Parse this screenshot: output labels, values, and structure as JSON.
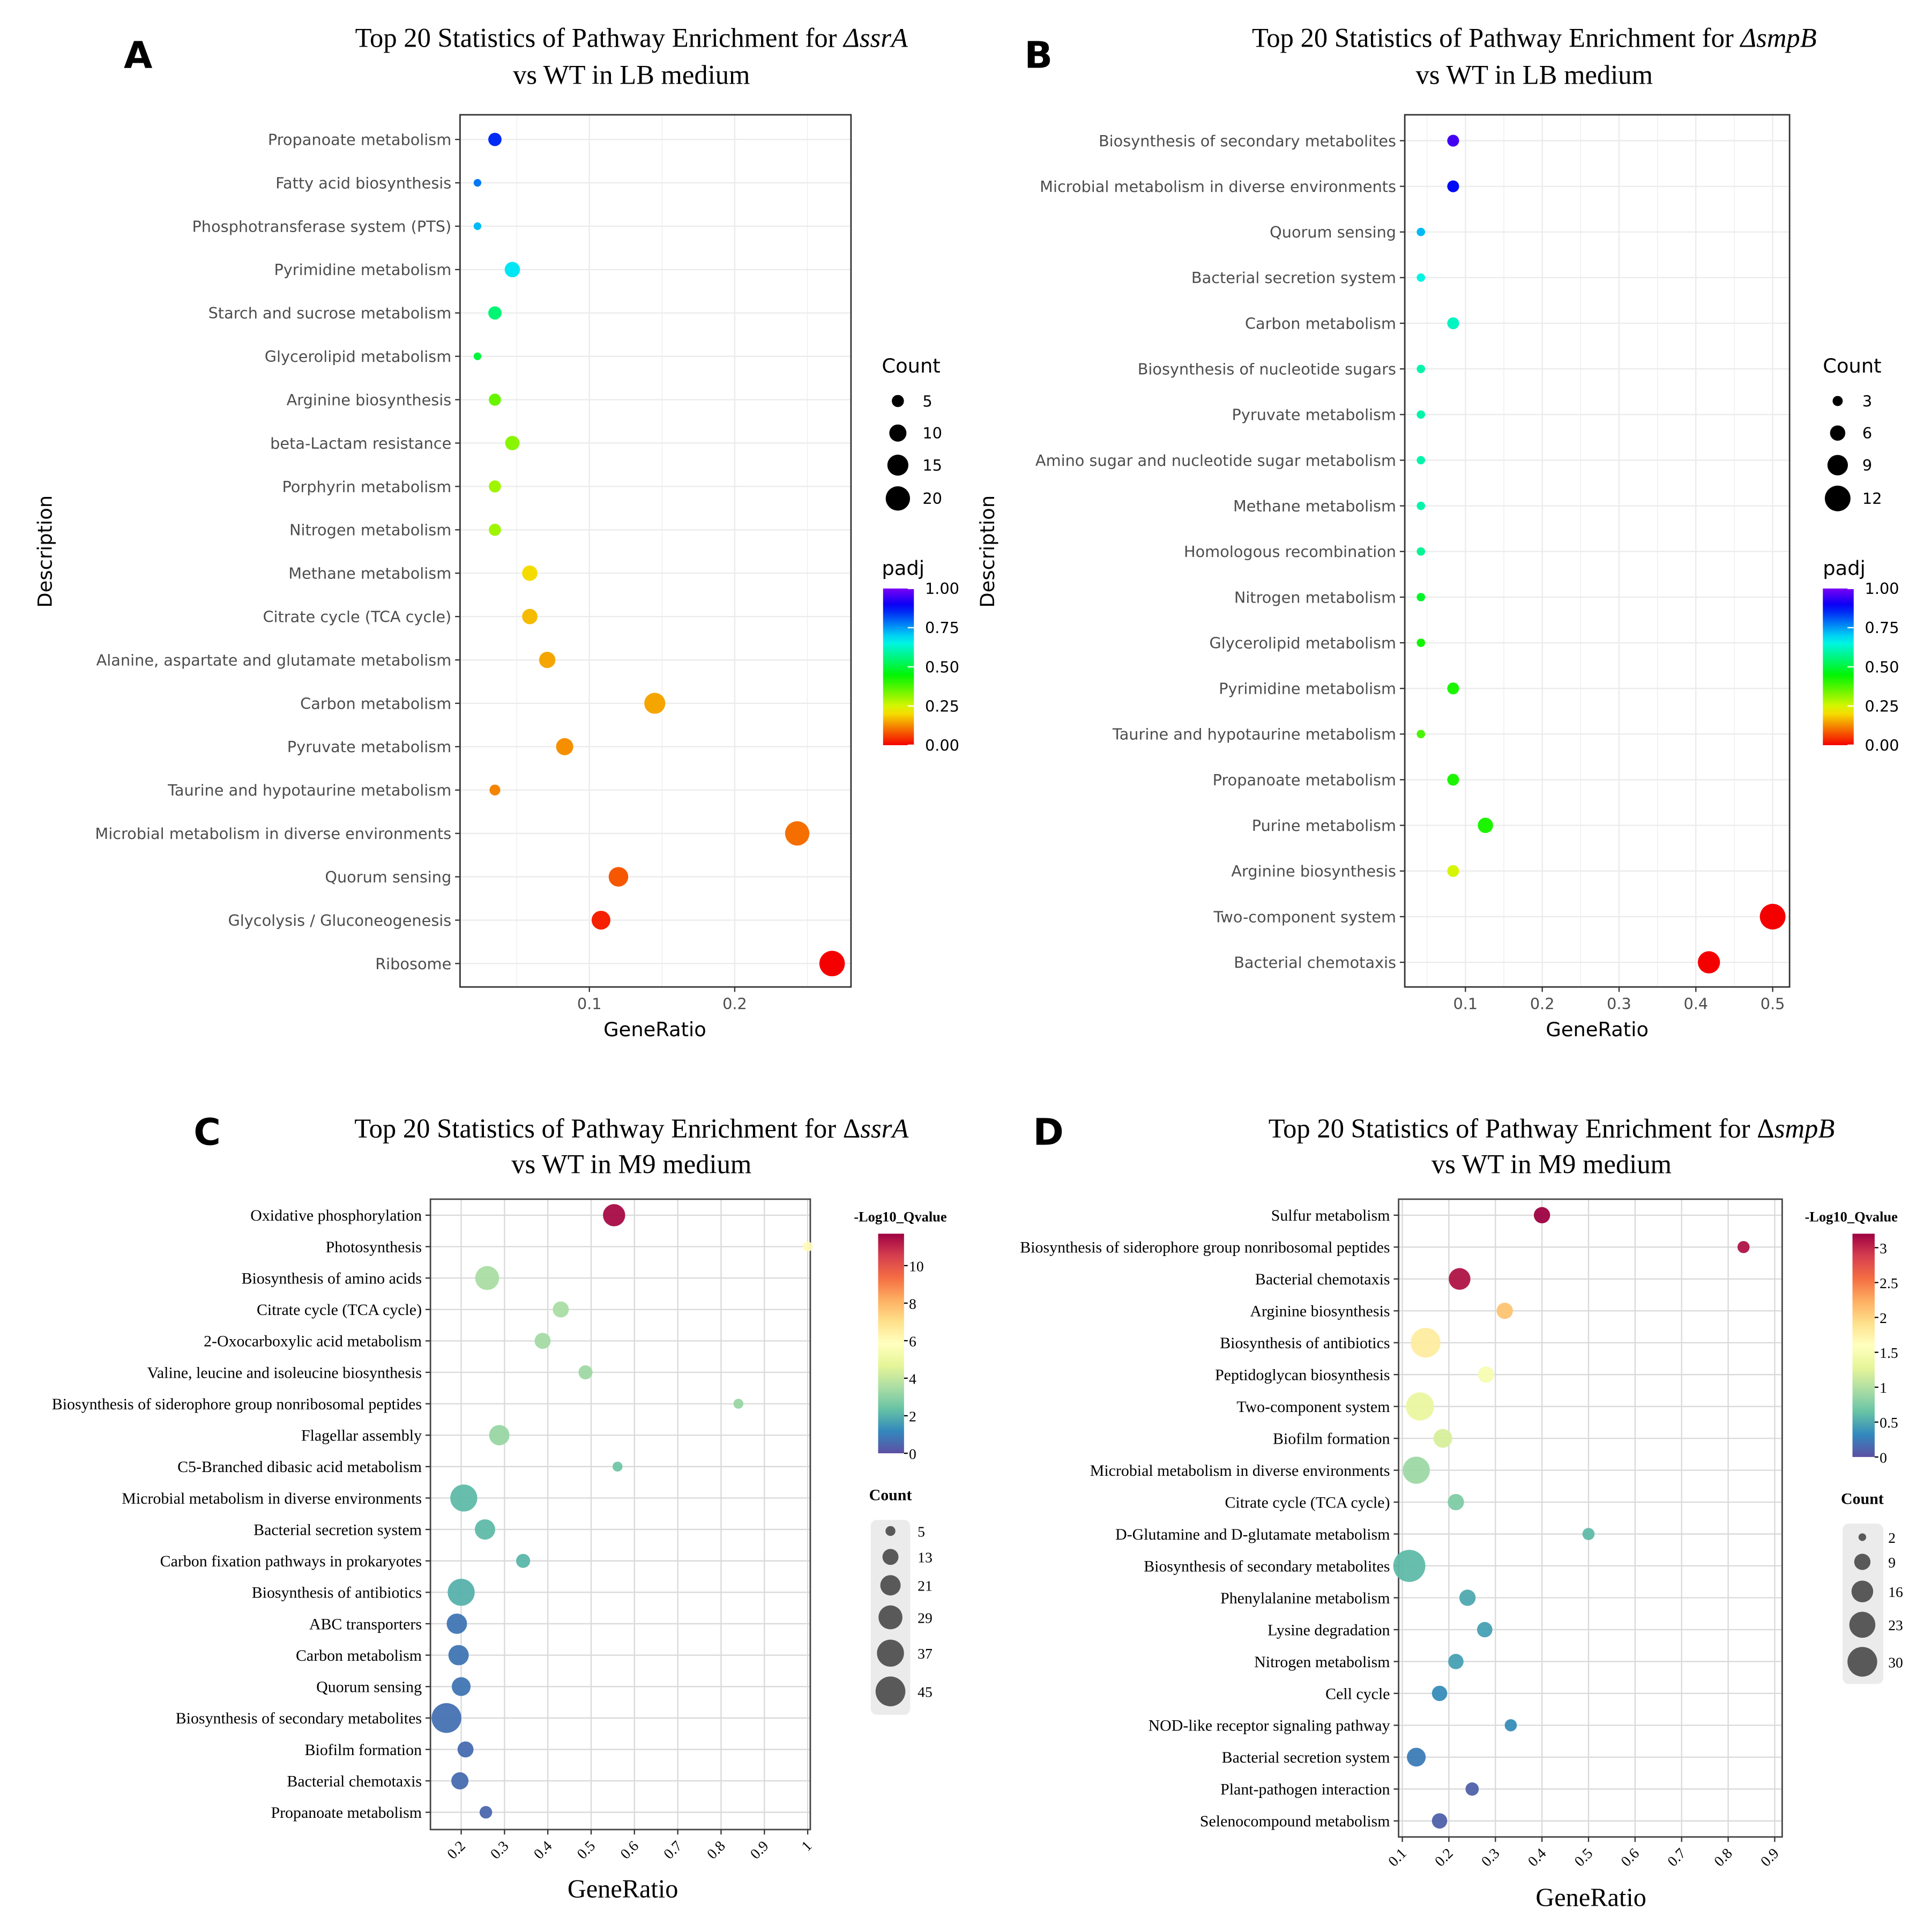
{
  "chart_data": [
    {
      "panel_label": "A",
      "type": "scatter",
      "title_prefix": "Top 20 Statistics of Pathway Enrichment for ",
      "title_gene": "ΔssrA",
      "title_line2": "vs WT in LB medium",
      "xlabel": "GeneRatio",
      "ylabel": "Description",
      "xlim": [
        0.011,
        0.28
      ],
      "x_ticks": [
        "0.1",
        "0.2"
      ],
      "grid": true,
      "size_legend_title": "Count",
      "size_legend": [
        "5",
        "10",
        "15",
        "20"
      ],
      "color_legend_title": "padj",
      "color_legend_ticks": [
        "1.00",
        "0.75",
        "0.50",
        "0.25",
        "0.00"
      ],
      "color_range": [
        0,
        1
      ],
      "color_scale": "rainbow",
      "color_stops": [
        "#ff0000",
        "#80ff00",
        "#00ff80",
        "#00bfff",
        "#8000ff"
      ],
      "legend_position": "right",
      "categories": [
        "Propanoate metabolism",
        "Fatty acid biosynthesis",
        "Phosphotransferase system (PTS)",
        "Pyrimidine metabolism",
        "Starch and sucrose metabolism",
        "Glycerolipid metabolism",
        "Arginine biosynthesis",
        "beta-Lactam resistance",
        "Porphyrin metabolism",
        "Nitrogen metabolism",
        "Methane metabolism",
        "Citrate cycle (TCA cycle)",
        "Alanine, aspartate and glutamate metabolism",
        "Carbon metabolism",
        "Pyruvate metabolism",
        "Taurine and hypotaurine metabolism",
        "Microbial metabolism in diverse environments",
        "Quorum sensing",
        "Glycolysis / Gluconeogenesis",
        "Ribosome"
      ],
      "gene_ratio": [
        0.035,
        0.023,
        0.023,
        0.047,
        0.035,
        0.023,
        0.035,
        0.047,
        0.035,
        0.035,
        0.059,
        0.059,
        0.071,
        0.145,
        0.083,
        0.035,
        0.243,
        0.12,
        0.108,
        0.267
      ],
      "count": [
        6,
        2,
        2,
        8,
        6,
        2,
        5,
        7,
        5,
        5,
        8,
        8,
        9,
        15,
        10,
        4,
        20,
        13,
        12,
        22
      ],
      "color_value": [
        0.85,
        0.78,
        0.72,
        0.68,
        0.55,
        0.5,
        0.35,
        0.32,
        0.3,
        0.3,
        0.2,
        0.17,
        0.15,
        0.15,
        0.13,
        0.12,
        0.1,
        0.08,
        0.03,
        0.0
      ]
    },
    {
      "panel_label": "B",
      "type": "scatter",
      "title_prefix": "Top 20 Statistics of Pathway Enrichment for ",
      "title_gene": "ΔsmpB",
      "title_line2": "vs WT in LB medium",
      "xlabel": "GeneRatio",
      "ylabel": "Description",
      "xlim": [
        0.021,
        0.522
      ],
      "x_ticks": [
        "0.1",
        "0.2",
        "0.3",
        "0.4",
        "0.5"
      ],
      "grid": true,
      "size_legend_title": "Count",
      "size_legend": [
        "3",
        "6",
        "9",
        "12"
      ],
      "color_legend_title": "padj",
      "color_legend_ticks": [
        "1.00",
        "0.75",
        "0.50",
        "0.25",
        "0.00"
      ],
      "color_range": [
        0,
        1
      ],
      "color_scale": "rainbow",
      "color_stops": [
        "#ff0000",
        "#80ff00",
        "#00ff80",
        "#00bfff",
        "#8000ff"
      ],
      "legend_position": "right",
      "categories": [
        "Biosynthesis of secondary metabolites",
        "Microbial metabolism in diverse environments",
        "Quorum sensing",
        "Bacterial secretion system",
        "Carbon metabolism",
        "Biosynthesis of nucleotide sugars",
        "Pyruvate metabolism",
        "Amino sugar and nucleotide sugar metabolism",
        "Methane metabolism",
        "Homologous recombination",
        "Nitrogen metabolism",
        "Glycerolipid metabolism",
        "Pyrimidine metabolism",
        "Taurine and hypotaurine metabolism",
        "Propanoate metabolism",
        "Purine metabolism",
        "Arginine biosynthesis",
        "Two-component system",
        "Bacterial chemotaxis"
      ],
      "gene_ratio": [
        0.084,
        0.084,
        0.042,
        0.042,
        0.084,
        0.042,
        0.042,
        0.042,
        0.042,
        0.042,
        0.042,
        0.042,
        0.084,
        0.042,
        0.084,
        0.126,
        0.084,
        0.5,
        0.417
      ],
      "count": [
        4,
        4,
        2,
        2,
        4,
        2,
        2,
        2,
        2,
        2,
        2,
        2,
        4,
        2,
        4,
        6,
        4,
        12,
        10
      ],
      "color_value": [
        0.95,
        0.88,
        0.72,
        0.65,
        0.62,
        0.6,
        0.6,
        0.6,
        0.6,
        0.58,
        0.48,
        0.43,
        0.42,
        0.38,
        0.42,
        0.42,
        0.25,
        0.0,
        0.0
      ]
    },
    {
      "panel_label": "C",
      "type": "scatter",
      "title_prefix": "Top 20 Statistics of Pathway Enrichment for Δ",
      "title_gene": "ssrA",
      "title_line2": "vs WT in M9 medium",
      "xlabel": "GeneRatio",
      "ylabel": "",
      "xlim": [
        0.129,
        1.006
      ],
      "x_ticks": [
        "0.2",
        "0.3",
        "0.4",
        "0.5",
        "0.6",
        "0.7",
        "0.8",
        "0.9",
        "1"
      ],
      "grid": true,
      "size_legend_title": "Count",
      "size_legend": [
        "5",
        "13",
        "21",
        "29",
        "37",
        "45"
      ],
      "color_legend_title": "-Log10_Qvalue",
      "color_legend_ticks": [
        "10",
        "8",
        "6",
        "4",
        "2",
        "0"
      ],
      "color_range": [
        0,
        11.7
      ],
      "color_scale": "Spectral (reversed)",
      "color_stops": [
        "#5e4fa2",
        "#3288bd",
        "#66c2a5",
        "#abdda4",
        "#e6f598",
        "#ffffbf",
        "#fee08b",
        "#fdae61",
        "#f46d43",
        "#d53e4f",
        "#9e0142"
      ],
      "legend_position": "right",
      "categories": [
        "Oxidative phosphorylation",
        "Photosynthesis",
        "Biosynthesis of amino acids",
        "Citrate cycle (TCA cycle)",
        "2-Oxocarboxylic acid metabolism",
        "Valine, leucine and isoleucine biosynthesis",
        "Biosynthesis of siderophore group nonribosomal peptides",
        "Flagellar assembly",
        "C5-Branched dibasic acid metabolism",
        "Microbial metabolism in diverse environments",
        "Bacterial secretion system",
        "Carbon fixation pathways in prokaryotes",
        "Biosynthesis of antibiotics",
        "ABC transporters",
        "Carbon metabolism",
        "Quorum sensing",
        "Biosynthesis of secondary metabolites",
        "Biofilm formation",
        "Bacterial chemotaxis",
        "Propanoate metabolism"
      ],
      "gene_ratio": [
        0.553,
        1.0,
        0.26,
        0.43,
        0.388,
        0.487,
        0.84,
        0.288,
        0.561,
        0.206,
        0.255,
        0.343,
        0.2,
        0.19,
        0.194,
        0.2,
        0.166,
        0.21,
        0.197,
        0.257
      ],
      "count": [
        25,
        5,
        29,
        13,
        13,
        10,
        5,
        21,
        5,
        37,
        21,
        10,
        37,
        21,
        21,
        18,
        45,
        13,
        15,
        8
      ],
      "color_value": [
        11.5,
        6,
        3.5,
        3.5,
        3.4,
        3.3,
        3.2,
        3.2,
        2.5,
        2.2,
        2.2,
        2.1,
        2.0,
        0.8,
        0.8,
        0.8,
        0.7,
        0.6,
        0.6,
        0.5
      ]
    },
    {
      "panel_label": "D",
      "type": "scatter",
      "title_prefix": "Top 20 Statistics of Pathway Enrichment for Δ",
      "title_gene": "smpB",
      "title_line2": "vs WT in M9 medium",
      "xlabel": "GeneRatio",
      "ylabel": "",
      "xlim": [
        0.092,
        0.916
      ],
      "x_ticks": [
        "0.1",
        "0.2",
        "0.3",
        "0.4",
        "0.5",
        "0.6",
        "0.7",
        "0.8",
        "0.9"
      ],
      "grid": true,
      "size_legend_title": "Count",
      "size_legend": [
        "2",
        "9",
        "16",
        "23",
        "30"
      ],
      "color_legend_title": "-Log10_Qvalue",
      "color_legend_ticks": [
        "3",
        "2.5",
        "2",
        "1.5",
        "1",
        "0.5",
        "0"
      ],
      "color_range": [
        0,
        3.2
      ],
      "color_scale": "Spectral (reversed)",
      "color_stops": [
        "#5e4fa2",
        "#3288bd",
        "#66c2a5",
        "#abdda4",
        "#e6f598",
        "#ffffbf",
        "#fee08b",
        "#fdae61",
        "#f46d43",
        "#d53e4f",
        "#9e0142"
      ],
      "legend_position": "right",
      "categories": [
        "Sulfur metabolism",
        "Biosynthesis of siderophore group nonribosomal peptides",
        "Bacterial chemotaxis",
        "Arginine biosynthesis",
        "Biosynthesis of antibiotics",
        "Peptidoglycan biosynthesis",
        "Two-component system",
        "Biofilm formation",
        "Microbial metabolism in diverse environments",
        "Citrate cycle (TCA cycle)",
        "D-Glutamine and D-glutamate metabolism",
        "Biosynthesis of secondary metabolites",
        "Phenylalanine metabolism",
        "Lysine degradation",
        "Nitrogen metabolism",
        "Cell cycle",
        "NOD-like receptor signaling pathway",
        "Bacterial secretion system",
        "Plant-pathogen interaction",
        "Selenocompound metabolism"
      ],
      "gene_ratio": [
        0.4,
        0.833,
        0.223,
        0.32,
        0.15,
        0.28,
        0.138,
        0.187,
        0.13,
        0.215,
        0.5,
        0.115,
        0.24,
        0.277,
        0.215,
        0.18,
        0.333,
        0.13,
        0.25,
        0.18
      ],
      "count": [
        9,
        5,
        16,
        9,
        30,
        9,
        27,
        12,
        25,
        9,
        5,
        35,
        9,
        8,
        8,
        8,
        5,
        12,
        6,
        8
      ],
      "color_value": [
        3.2,
        3.1,
        3.1,
        2.1,
        1.8,
        1.5,
        1.35,
        1.2,
        0.9,
        0.75,
        0.6,
        0.6,
        0.5,
        0.45,
        0.45,
        0.35,
        0.35,
        0.25,
        0.1,
        0.1
      ]
    }
  ]
}
